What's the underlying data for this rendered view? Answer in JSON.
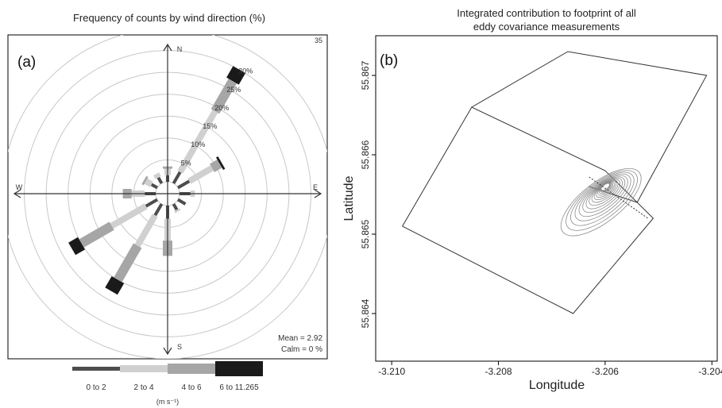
{
  "panel_a": {
    "title": "Frequency of counts by wind direction (%)",
    "label": "(a)",
    "compass": {
      "north": "N",
      "south": "S",
      "east": "E",
      "west": "W"
    },
    "corner_value": "35",
    "mean_text": "Mean = 2.92",
    "calm_text": "Calm = 0 %",
    "legend_unit": "(m s⁻¹)"
  },
  "panel_b": {
    "title_line1": "Integrated contribution to footprint of all",
    "title_line2": "eddy covariance measurements",
    "label": "(b)",
    "xlabel": "Longitude",
    "ylabel": "Latitude"
  },
  "colors": {
    "bin_0_2": "#4d4d4d",
    "bin_2_4": "#d0d0d0",
    "bin_4_6": "#a6a6a6",
    "bin_6_11": "#1a1a1a",
    "rings": "#c8c8c8",
    "axis": "#333333"
  },
  "chart_data": [
    {
      "type": "windrose",
      "title": "Frequency of counts by wind direction (%)",
      "radial_unit": "%",
      "radial_ticks": [
        5,
        10,
        15,
        20,
        25,
        30,
        35
      ],
      "radial_tick_labels": [
        "5%",
        "10%",
        "15%",
        "20%",
        "25%",
        "30%",
        "35"
      ],
      "rmax": 35,
      "bins": [
        "0 to 2",
        "2 to 4",
        "4 to 6",
        "6 to 11.265"
      ],
      "bin_unit": "(m s⁻¹)",
      "sectors": [
        {
          "dir": 0,
          "values": [
            1.5,
            1.5,
            0.5,
            0
          ]
        },
        {
          "dir": 30,
          "values": [
            3,
            16,
            8,
            3
          ]
        },
        {
          "dir": 60,
          "values": [
            3,
            6,
            2,
            0.5
          ]
        },
        {
          "dir": 90,
          "values": [
            2.5,
            1,
            0,
            0
          ]
        },
        {
          "dir": 120,
          "values": [
            2,
            0,
            0,
            0
          ]
        },
        {
          "dir": 150,
          "values": [
            1.5,
            0.5,
            0,
            0
          ]
        },
        {
          "dir": 180,
          "values": [
            3,
            5,
            3.5,
            0
          ]
        },
        {
          "dir": 210,
          "values": [
            3,
            8,
            9,
            3
          ]
        },
        {
          "dir": 240,
          "values": [
            3,
            9,
            8,
            2.5
          ]
        },
        {
          "dir": 270,
          "values": [
            2.5,
            3,
            2,
            0
          ]
        },
        {
          "dir": 300,
          "values": [
            1.5,
            1.5,
            0.5,
            0
          ]
        },
        {
          "dir": 330,
          "values": [
            1.5,
            1,
            0,
            0
          ]
        }
      ],
      "mean": 2.92,
      "calm": 0
    },
    {
      "type": "contour",
      "title": "Integrated contribution to footprint of all eddy covariance measurements",
      "xlabel": "Longitude",
      "ylabel": "Latitude",
      "xlim": [
        -3.2103,
        -3.2039
      ],
      "ylim": [
        55.8634,
        55.8675
      ],
      "xticks": [
        -3.21,
        -3.208,
        -3.206,
        -3.204
      ],
      "xtick_labels": [
        "-3.210",
        "-3.208",
        "-3.206",
        "-3.204"
      ],
      "yticks": [
        55.864,
        55.865,
        55.866,
        55.867
      ],
      "ytick_labels": [
        "55.864",
        "55.865",
        "55.866",
        "55.867"
      ],
      "field_boundaries": [
        [
          [
            -3.2085,
            55.8666
          ],
          [
            -3.2067,
            55.8673
          ],
          [
            -3.2041,
            55.867
          ],
          [
            -3.2054,
            55.8654
          ],
          [
            -3.2063,
            55.8656
          ]
        ],
        [
          [
            -3.2098,
            55.8651
          ],
          [
            -3.2085,
            55.8666
          ],
          [
            -3.206,
            55.8658
          ],
          [
            -3.2051,
            55.8652
          ],
          [
            -3.2066,
            55.864
          ],
          [
            -3.2098,
            55.8651
          ]
        ]
      ],
      "footprint_peak": [
        -3.206,
        55.8656
      ]
    }
  ]
}
